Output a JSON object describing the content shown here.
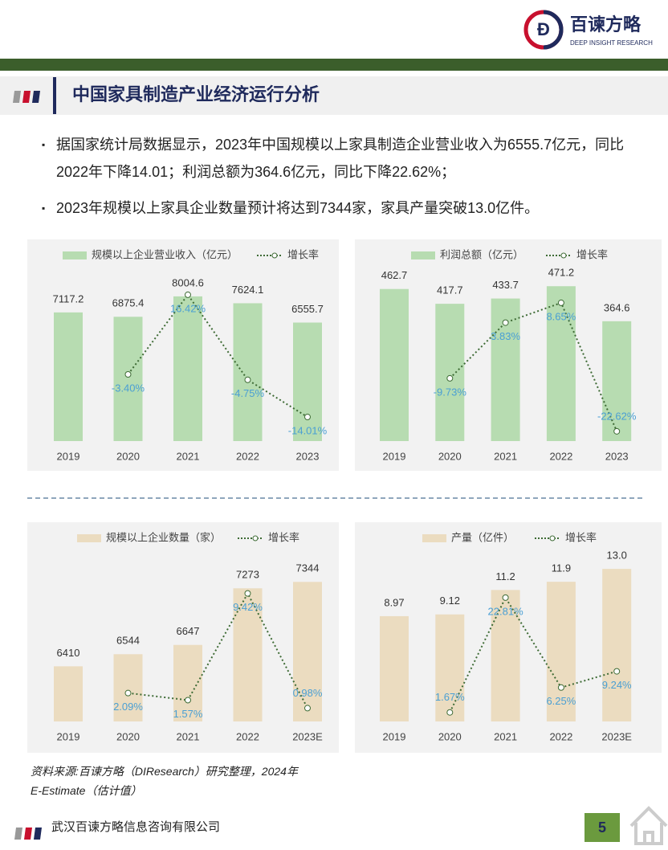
{
  "header": {
    "brand": "百谏方略",
    "brand_sub": "DEEP INSIGHT RESEARCH"
  },
  "section_title": "中国家具制造产业经济运行分析",
  "bullets": [
    "据国家统计局数据显示，2023年中国规模以上家具制造企业营业收入为6555.7亿元，同比2022年下降14.01；利润总额为364.6亿元，同比下降22.62%；",
    "2023年规模以上家具企业数量预计将达到7344家，家具产量突破13.0亿件。"
  ],
  "chart_data": [
    {
      "type": "bar",
      "categories": [
        "2019",
        "2020",
        "2021",
        "2022",
        "2023"
      ],
      "series": [
        {
          "name": "规模以上企业营业收入（亿元）",
          "type": "bar",
          "color": "#b7dcb1",
          "values": [
            7117.2,
            6875.4,
            8004.6,
            7624.1,
            6555.7
          ]
        },
        {
          "name": "增长率",
          "type": "line",
          "axis": "y2",
          "color": "#3e6b35",
          "values": [
            null,
            -3.4,
            16.42,
            -4.75,
            -14.01
          ],
          "value_labels": [
            null,
            "-3.40%",
            "16.42%",
            "-4.75%",
            "-14.01%"
          ]
        }
      ],
      "ylim": [
        0,
        10000
      ],
      "y2lim": [
        -20,
        25
      ]
    },
    {
      "type": "bar",
      "categories": [
        "2019",
        "2020",
        "2021",
        "2022",
        "2023"
      ],
      "series": [
        {
          "name": "利润总额（亿元）",
          "type": "bar",
          "color": "#b7dcb1",
          "values": [
            462.7,
            417.7,
            433.7,
            471.2,
            364.6
          ]
        },
        {
          "name": "增长率",
          "type": "line",
          "axis": "y2",
          "color": "#3e6b35",
          "values": [
            null,
            -9.73,
            3.83,
            8.65,
            -22.62
          ],
          "value_labels": [
            null,
            "-9.73%",
            "3.83%",
            "8.65%",
            "-22.62%"
          ]
        }
      ],
      "ylim": [
        0,
        550
      ],
      "y2lim": [
        -25,
        19
      ]
    },
    {
      "type": "bar",
      "categories": [
        "2019",
        "2020",
        "2021",
        "2022",
        "2023E"
      ],
      "series": [
        {
          "name": "规模以上企业数量（家）",
          "type": "bar",
          "color": "#ebdcc0",
          "values": [
            6410,
            6544,
            6647,
            7273,
            7344
          ]
        },
        {
          "name": "增长率",
          "type": "line",
          "axis": "y2",
          "color": "#3e6b35",
          "values": [
            null,
            2.09,
            1.57,
            9.42,
            0.98
          ],
          "value_labels": [
            null,
            "2.09%",
            "1.57%",
            "9.42%",
            "0.98%"
          ]
        }
      ],
      "ylim": [
        5800,
        7800
      ],
      "y2lim": [
        0,
        13.3
      ]
    },
    {
      "type": "bar",
      "categories": [
        "2019",
        "2020",
        "2021",
        "2022",
        "2023E"
      ],
      "series": [
        {
          "name": "产量（亿件）",
          "type": "bar",
          "color": "#ebdcc0",
          "values": [
            8.97,
            9.12,
            11.2,
            11.9,
            13.0
          ],
          "value_labels": [
            "8.97",
            "9.12",
            "11.2",
            "11.9",
            "13.0"
          ]
        },
        {
          "name": "增长率",
          "type": "line",
          "axis": "y2",
          "color": "#3e6b35",
          "values": [
            null,
            1.67,
            22.81,
            6.25,
            9.24
          ],
          "value_labels": [
            null,
            "1.67%",
            "22.81%",
            "6.25%",
            "9.24%"
          ]
        }
      ],
      "ylim": [
        0,
        15.4
      ],
      "y2lim": [
        0,
        33.3
      ]
    }
  ],
  "source": [
    "资料来源:百谏方略（DIResearch）研究整理，2024年",
    "E-Estimate（估计值）"
  ],
  "footer": {
    "company": "武汉百谏方略信息咨询有限公司",
    "page": "5"
  }
}
